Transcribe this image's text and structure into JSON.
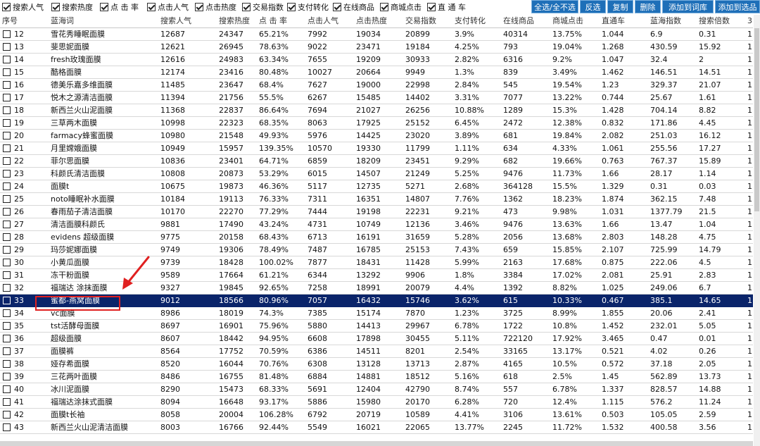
{
  "toolbar": {
    "options": [
      {
        "label": "搜索人气",
        "checked": true
      },
      {
        "label": "搜索热度",
        "checked": true
      },
      {
        "label": "点 击 率",
        "checked": true
      },
      {
        "label": "点击人气",
        "checked": true
      },
      {
        "label": "点击热度",
        "checked": true
      },
      {
        "label": "交易指数",
        "checked": true
      },
      {
        "label": "支付转化",
        "checked": true
      },
      {
        "label": "在线商品",
        "checked": true
      },
      {
        "label": "商城点击",
        "checked": true
      },
      {
        "label": "直 通 车",
        "checked": true
      }
    ],
    "buttons": [
      "全选/全不选",
      "反选",
      "复制",
      "删除",
      "添加到词库",
      "添加到选品"
    ]
  },
  "table": {
    "headers": [
      "序号",
      "蓝海词",
      "搜索人气",
      "搜索热度",
      "点 击 率",
      "点击人气",
      "点击热度",
      "交易指数",
      "支付转化",
      "在线商品",
      "商城点击",
      "直通车",
      "蓝海指数",
      "搜索倍数",
      "3"
    ],
    "selected_index": 21,
    "rows": [
      [
        "12",
        "雪花秀睡眠面膜",
        "12687",
        "24347",
        "65.21%",
        "7992",
        "19034",
        "20899",
        "3.9%",
        "40314",
        "13.75%",
        "1.044",
        "6.9",
        "0.31",
        "1"
      ],
      [
        "13",
        "斐思妮面膜",
        "12621",
        "26945",
        "78.63%",
        "9022",
        "23471",
        "19184",
        "4.25%",
        "793",
        "19.04%",
        "1.268",
        "430.59",
        "15.92",
        "1"
      ],
      [
        "14",
        "fresh玫瑰面膜",
        "12616",
        "24983",
        "63.34%",
        "7655",
        "19209",
        "30933",
        "2.82%",
        "6316",
        "9.2%",
        "1.047",
        "32.4",
        "2",
        "1"
      ],
      [
        "15",
        "酷格面膜",
        "12174",
        "23416",
        "80.48%",
        "10027",
        "20664",
        "9949",
        "1.3%",
        "839",
        "3.49%",
        "1.462",
        "146.51",
        "14.51",
        "1"
      ],
      [
        "16",
        "德美乐嘉多维面膜",
        "11485",
        "23647",
        "68.4%",
        "7627",
        "19000",
        "22998",
        "2.84%",
        "545",
        "19.54%",
        "1.23",
        "329.37",
        "21.07",
        "1"
      ],
      [
        "17",
        "悦木之源清洁面膜",
        "11394",
        "21756",
        "55.5%",
        "6267",
        "15485",
        "14402",
        "3.31%",
        "7077",
        "13.22%",
        "0.744",
        "25.67",
        "1.61",
        "1"
      ],
      [
        "18",
        "新西兰火山泥面膜",
        "11368",
        "22837",
        "86.64%",
        "7694",
        "21027",
        "26256",
        "10.88%",
        "1289",
        "15.3%",
        "1.428",
        "704.14",
        "8.82",
        "1"
      ],
      [
        "19",
        "三草两木面膜",
        "10998",
        "22323",
        "68.35%",
        "8063",
        "17925",
        "25152",
        "6.45%",
        "2472",
        "12.38%",
        "0.832",
        "171.86",
        "4.45",
        "1"
      ],
      [
        "20",
        "farmacy蜂蜜面膜",
        "10980",
        "21548",
        "49.93%",
        "5976",
        "14425",
        "23020",
        "3.89%",
        "681",
        "19.84%",
        "2.082",
        "251.03",
        "16.12",
        "1"
      ],
      [
        "21",
        "月里嫦娥面膜",
        "10949",
        "15957",
        "139.35%",
        "10570",
        "19330",
        "11799",
        "1.11%",
        "634",
        "4.33%",
        "1.061",
        "255.56",
        "17.27",
        "1"
      ],
      [
        "22",
        "菲尔思面膜",
        "10836",
        "23401",
        "64.71%",
        "6859",
        "18209",
        "23451",
        "9.29%",
        "682",
        "19.66%",
        "0.763",
        "767.37",
        "15.89",
        "1"
      ],
      [
        "23",
        "科颜氏清洁面膜",
        "10808",
        "20873",
        "53.29%",
        "6015",
        "14507",
        "21249",
        "5.25%",
        "9476",
        "11.73%",
        "1.66",
        "28.17",
        "1.14",
        "1"
      ],
      [
        "24",
        "面膜t",
        "10675",
        "19873",
        "46.36%",
        "5117",
        "12735",
        "5271",
        "2.68%",
        "364128",
        "15.5%",
        "1.329",
        "0.31",
        "0.03",
        "1"
      ],
      [
        "25",
        "noto睡眠补水面膜",
        "10184",
        "19113",
        "76.33%",
        "7311",
        "16351",
        "14807",
        "7.76%",
        "1362",
        "18.23%",
        "1.874",
        "362.15",
        "7.48",
        "1"
      ],
      [
        "26",
        "春雨茄子清洁面膜",
        "10170",
        "22270",
        "77.29%",
        "7444",
        "19198",
        "22231",
        "9.21%",
        "473",
        "9.98%",
        "1.031",
        "1377.79",
        "21.5",
        "1"
      ],
      [
        "27",
        "清洁面膜科颜氏",
        "9881",
        "17490",
        "43.24%",
        "4731",
        "10749",
        "12136",
        "3.46%",
        "9476",
        "13.63%",
        "1.66",
        "13.47",
        "1.04",
        "1"
      ],
      [
        "28",
        "evidens 超级面膜",
        "9775",
        "20158",
        "68.43%",
        "6713",
        "16191",
        "31659",
        "5.28%",
        "2056",
        "13.68%",
        "2.803",
        "148.28",
        "4.75",
        "1"
      ],
      [
        "29",
        "玛莎妮娜面膜",
        "9749",
        "19306",
        "78.49%",
        "7487",
        "16785",
        "25153",
        "7.43%",
        "659",
        "15.85%",
        "2.107",
        "725.99",
        "14.79",
        "1"
      ],
      [
        "30",
        "小黄瓜面膜",
        "9739",
        "18428",
        "100.02%",
        "7877",
        "18431",
        "11428",
        "5.99%",
        "2163",
        "17.68%",
        "0.875",
        "222.06",
        "4.5",
        "1"
      ],
      [
        "31",
        "冻干粉面膜",
        "9589",
        "17664",
        "61.21%",
        "6344",
        "13292",
        "9906",
        "1.8%",
        "3384",
        "17.02%",
        "2.081",
        "25.91",
        "2.83",
        "1"
      ],
      [
        "32",
        "福瑞达 涂抹面膜",
        "9327",
        "19845",
        "92.65%",
        "7258",
        "18991",
        "20079",
        "4.4%",
        "1392",
        "8.82%",
        "1.025",
        "249.06",
        "6.7",
        "1"
      ],
      [
        "33",
        "蜜都-燕窝面膜",
        "9012",
        "18566",
        "80.96%",
        "7057",
        "16432",
        "15746",
        "3.62%",
        "615",
        "10.33%",
        "0.467",
        "385.1",
        "14.65",
        "1"
      ],
      [
        "34",
        "vc面膜",
        "8986",
        "18019",
        "74.3%",
        "7385",
        "15174",
        "7870",
        "1.23%",
        "3725",
        "8.99%",
        "1.855",
        "20.06",
        "2.41",
        "1"
      ],
      [
        "35",
        "tst活酵母面膜",
        "8697",
        "16901",
        "75.96%",
        "5880",
        "14413",
        "29967",
        "6.78%",
        "1722",
        "10.8%",
        "1.452",
        "232.01",
        "5.05",
        "1"
      ],
      [
        "36",
        "超级面膜",
        "8607",
        "18442",
        "94.95%",
        "6608",
        "17898",
        "30455",
        "5.11%",
        "722120",
        "17.92%",
        "3.465",
        "0.47",
        "0.01",
        "1"
      ],
      [
        "37",
        "面膜裤",
        "8564",
        "17752",
        "70.59%",
        "6386",
        "14511",
        "8201",
        "2.54%",
        "33165",
        "13.17%",
        "0.521",
        "4.02",
        "0.26",
        "1"
      ],
      [
        "38",
        "娅存希面膜",
        "8520",
        "16044",
        "70.76%",
        "6308",
        "13128",
        "13713",
        "2.87%",
        "4165",
        "10.5%",
        "0.572",
        "37.18",
        "2.05",
        "1"
      ],
      [
        "39",
        "三花两叶面膜",
        "8486",
        "16755",
        "81.48%",
        "6884",
        "14881",
        "18512",
        "5.16%",
        "618",
        "2.5%",
        "1.45",
        "562.89",
        "13.73",
        "1"
      ],
      [
        "40",
        "冰川泥面膜",
        "8290",
        "15473",
        "68.33%",
        "5691",
        "12404",
        "42790",
        "8.74%",
        "557",
        "6.78%",
        "1.337",
        "828.57",
        "14.88",
        "1"
      ],
      [
        "41",
        "福瑞达涂抹式面膜",
        "8094",
        "16648",
        "93.17%",
        "5886",
        "15980",
        "20170",
        "6.28%",
        "720",
        "12.4%",
        "1.115",
        "576.2",
        "11.24",
        "1"
      ],
      [
        "42",
        "面膜t长袖",
        "8058",
        "20004",
        "106.28%",
        "6792",
        "20719",
        "10589",
        "4.41%",
        "3106",
        "13.61%",
        "0.503",
        "105.05",
        "2.59",
        "1"
      ],
      [
        "43",
        "新西兰火山泥清洁面膜",
        "8003",
        "16766",
        "92.44%",
        "5549",
        "16021",
        "22065",
        "13.77%",
        "2245",
        "11.72%",
        "1.532",
        "400.58",
        "3.56",
        "1"
      ]
    ]
  },
  "colors": {
    "button_bg": "#1e6fb8",
    "selected_row_bg": "#0a246a",
    "annotation_red": "#e02020"
  }
}
